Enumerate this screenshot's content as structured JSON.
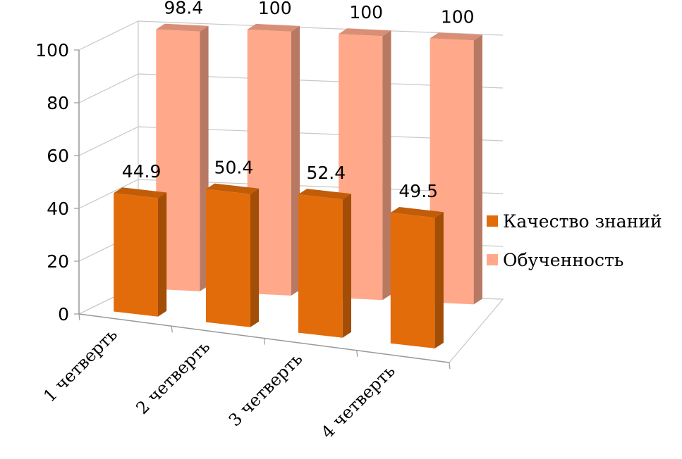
{
  "chart_data": {
    "type": "bar",
    "categories": [
      "1 четверть",
      "2 четверть",
      "3 четверть",
      "4 четверть"
    ],
    "series": [
      {
        "name": "Качество знаний",
        "values": [
          44.9,
          50.4,
          52.4,
          49.5
        ],
        "color": "#E36C0A"
      },
      {
        "name": "Обученность",
        "values": [
          98.4,
          100,
          100,
          100
        ],
        "color": "#FFA88A"
      }
    ],
    "yticks": [
      0,
      20,
      40,
      60,
      80,
      100
    ],
    "ylim": [
      0,
      100
    ],
    "grid": true,
    "legend_position": "right",
    "view": "3d"
  }
}
